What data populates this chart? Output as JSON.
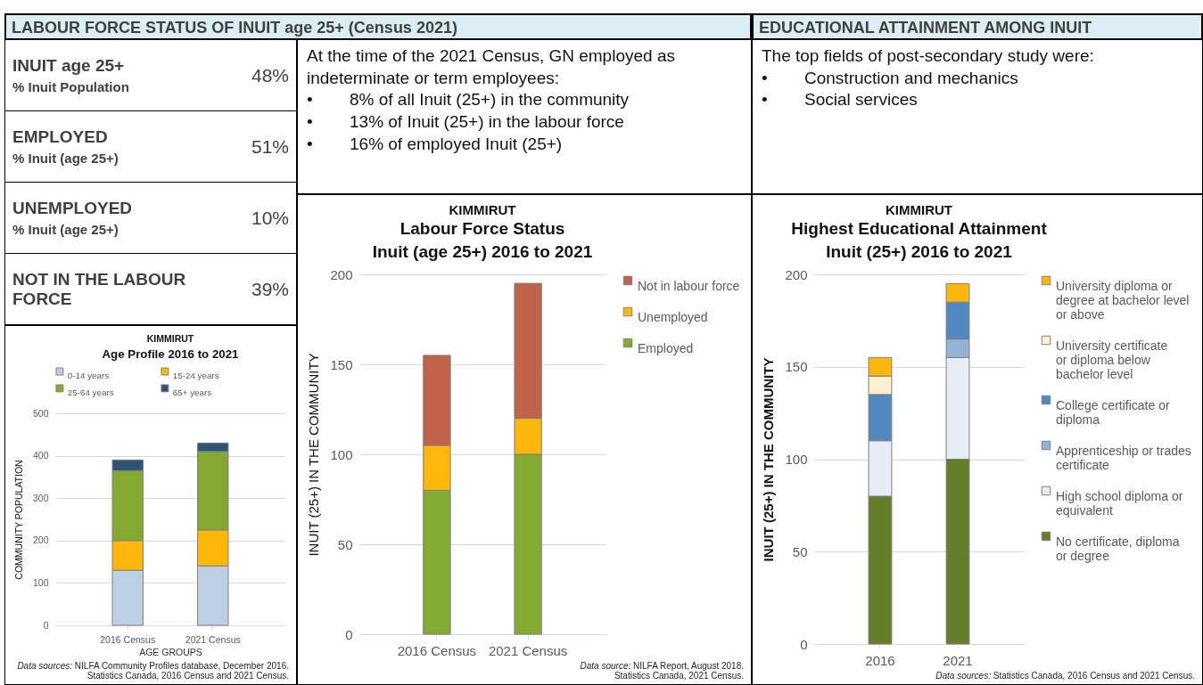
{
  "chart_data": [
    {
      "type": "other",
      "title": "LABOUR FORCE STATUS OF INUIT age 25+ (Census 2021)",
      "categories": [
        "INUIT age 25+\n% Inuit Population",
        "EMPLOYED\n% Inuit (age 25+)",
        "UNEMPLOYED\n% Inuit (age 25+)",
        "NOT IN THE LABOUR FORCE"
      ],
      "annotations": [
        "48%",
        "51%",
        "10%",
        "39%"
      ]
    },
    {
      "type": "other",
      "subtitle": "At the time of the 2021 Census, GN employed as indeterminate or term employees:",
      "annotations": [
        "• 8% of all Inuit (25+) in the community",
        "• 13% of Inuit (25+) in the labour force",
        "• 16% of employed Inuit (25+)"
      ]
    },
    {
      "type": "other",
      "title": "EDUCATIONAL ATTAINMENT AMONG INUIT",
      "subtitle": "The top fields of post-secondary study were:",
      "annotations": [
        "• Construction and mechanics",
        "• Social services"
      ]
    },
    {
      "type": "bar",
      "stacked": true,
      "title": "KIMMIRUT",
      "subtitle": "Age Profile 2016 to 2021",
      "categories": [
        "2016 Census",
        "2021 Census"
      ],
      "xlabel": "AGE GROUPS",
      "ylabel": "COMMUNITY POPULATION",
      "series": [
        {
          "name": "0-14 years",
          "color": "#bdd0e3",
          "values": [
            130,
            140
          ]
        },
        {
          "name": "15-24 years",
          "color": "#ffb60d",
          "values": [
            70,
            85
          ]
        },
        {
          "name": "25-64 years",
          "color": "#85a832",
          "values": [
            165,
            185
          ]
        },
        {
          "name": "65+ years",
          "color": "#2d5573",
          "values": [
            25,
            20
          ]
        }
      ],
      "ylim": [
        0,
        500
      ],
      "yticks": [
        0,
        100,
        200,
        300,
        400,
        500
      ],
      "grid": "y",
      "legend": "top",
      "annotations": [
        "Data sources: NILFA Community Profiles database, December 2016.\nStatistics Canada, 2016 Census and 2021 Census."
      ]
    },
    {
      "type": "bar",
      "stacked": true,
      "title": "KIMMIRUT",
      "subtitle": "Labour Force Status\nInuit (age 25+) 2016 to 2021",
      "categories": [
        "2016 Census",
        "2021 Census"
      ],
      "ylabel": "INUIT (25+) IN THE COMMUNITY",
      "series": [
        {
          "name": "Employed",
          "color": "#86ab34",
          "values": [
            80,
            100
          ]
        },
        {
          "name": "Unemployed",
          "color": "#ffb60d",
          "values": [
            25,
            20
          ]
        },
        {
          "name": "Not in labour force",
          "color": "#c0634b",
          "values": [
            50,
            75
          ]
        }
      ],
      "ylim": [
        0,
        200
      ],
      "yticks": [
        0,
        50,
        100,
        150,
        200
      ],
      "grid": "y",
      "legend": "right",
      "annotations": [
        "Data source: NILFA Report, August 2018.\nStatistics Canada, 2021 Census."
      ]
    },
    {
      "type": "bar",
      "stacked": true,
      "title": "KIMMIRUT",
      "subtitle": "Highest Educational Attainment\nInuit (25+) 2016 to 2021",
      "categories": [
        "2016",
        "2021"
      ],
      "ylabel": "INUIT (25+) IN THE COMMUNITY",
      "series": [
        {
          "name": "No certificate, diploma or degree",
          "color": "#637f2a",
          "values": [
            80,
            100
          ]
        },
        {
          "name": "High school diploma or equivalent",
          "color": "#e8edf5",
          "values": [
            30,
            55
          ]
        },
        {
          "name": "Apprenticeship or trades certificate",
          "color": "#93b3d6",
          "values": [
            0,
            10
          ]
        },
        {
          "name": "College certificate or diploma",
          "color": "#5289c1",
          "values": [
            25,
            20
          ]
        },
        {
          "name": "University certificate or diploma below bachelor level",
          "color": "#fdf0cf",
          "values": [
            10,
            0
          ]
        },
        {
          "name": "University diploma or degree at bachelor level or above",
          "color": "#ffb60d",
          "values": [
            10,
            10
          ]
        }
      ],
      "ylim": [
        0,
        200
      ],
      "yticks": [
        0,
        50,
        100,
        150,
        200
      ],
      "grid": "y",
      "legend": "right",
      "annotations": [
        "Data sources: Statistics Canada, 2016 Census and 2021 Census."
      ]
    }
  ]
}
